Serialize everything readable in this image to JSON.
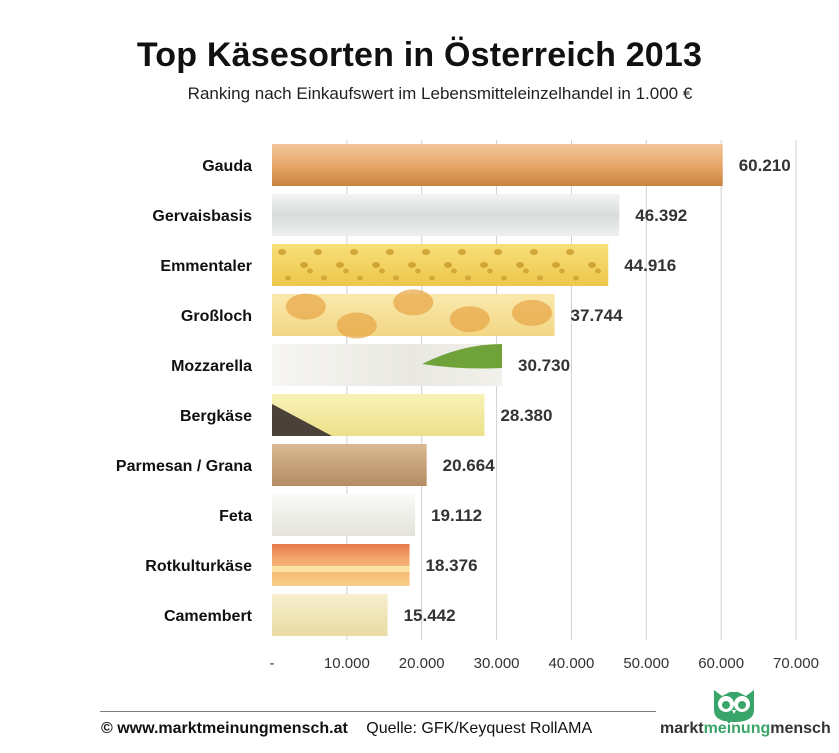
{
  "title": "Top Käsesorten in Österreich 2013",
  "subtitle": "Ranking nach Einkaufswert im Lebensmitteleinzelhandel in 1.000 €",
  "chart_data": {
    "type": "bar",
    "orientation": "horizontal",
    "categories": [
      "Gauda",
      "Gervaisbasis",
      "Emmentaler",
      "Großloch",
      "Mozzarella",
      "Bergkäse",
      "Parmesan / Grana",
      "Feta",
      "Rotkulturkäse",
      "Camembert"
    ],
    "values": [
      60210,
      46392,
      44916,
      37744,
      30730,
      28380,
      20664,
      19112,
      18376,
      15442
    ],
    "value_labels": [
      "60.210",
      "46.392",
      "44.916",
      "37.744",
      "30.730",
      "28.380",
      "20.664",
      "19.112",
      "18.376",
      "15.442"
    ],
    "xlim": [
      0,
      70000
    ],
    "x_ticks": [
      0,
      10000,
      20000,
      30000,
      40000,
      50000,
      60000,
      70000
    ],
    "x_tick_labels": [
      "-",
      "10.000",
      "20.000",
      "30.000",
      "40.000",
      "50.000",
      "60.000",
      "70.000"
    ],
    "grid": "vertical",
    "bar_colors": [
      "#e3a565",
      "#e4e8e6",
      "#f3d35c",
      "#f6e19a",
      "#efeee8",
      "#f4ec9e",
      "#c8a47c",
      "#f1f1ec",
      "#f0a064",
      "#f2e6b8"
    ],
    "bar_texture": [
      "none",
      "none",
      "holes",
      "bigholes",
      "leaf",
      "rind",
      "none",
      "none",
      "rind-top",
      "none"
    ]
  },
  "footer": {
    "site": "© www.marktmeinungmensch.at",
    "source": "Quelle: GFK/Keyquest RollAMA"
  },
  "logo": {
    "part1": "markt",
    "part2": "meinung",
    "part3": "mensch",
    "color": "#3aa56a"
  }
}
